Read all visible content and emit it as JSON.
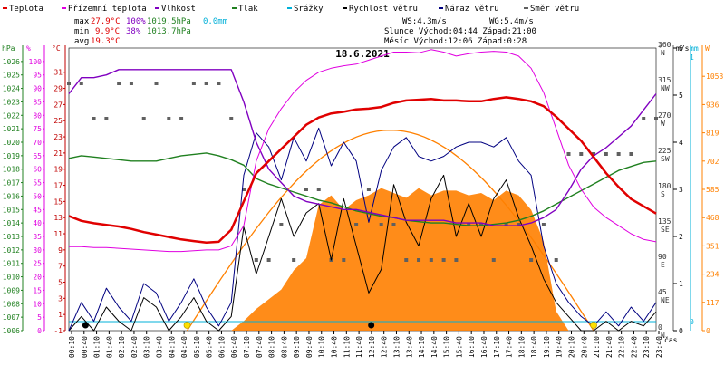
{
  "legend": [
    {
      "label": "Teplota",
      "color": "#e00000"
    },
    {
      "label": "Přízemní teplota",
      "color": "#e000e0"
    },
    {
      "label": "Vlhkost",
      "color": "#8000c0"
    },
    {
      "label": "Tlak",
      "color": "#208020"
    },
    {
      "label": "Srážky",
      "color": "#00b0d8"
    },
    {
      "label": "Rychlost větru",
      "color": "#000000"
    },
    {
      "label": "Náraz větru",
      "color": "#000080"
    },
    {
      "label": "Směr větru",
      "color": "#606060"
    }
  ],
  "stats": {
    "max_label": "max",
    "max_temp": "27.9°C",
    "max_hum": "100%",
    "max_press": "1019.5hPa",
    "max_rain": "0.0mm",
    "min_label": "min",
    "min_temp": "9.9°C",
    "min_hum": "38%",
    "min_press": "1013.7hPa",
    "avg_label": "avg",
    "avg_temp": "19.3°C",
    "ws": "WS:4.3m/s",
    "wg": "WG:5.4m/s",
    "sun": "Slunce Východ:04:44  Západ:21:00",
    "moon": "Měsíc  Východ:12:06  Západ:0:28"
  },
  "colors": {
    "temp": "#e00000",
    "ground": "#e000e0",
    "hum": "#8000c0",
    "press": "#208020",
    "rain": "#00b0d8",
    "wind": "#000000",
    "gust": "#000080",
    "dir": "#606060",
    "solar": "#ff8000",
    "sun": "#ff8000"
  },
  "chart_data": {
    "type": "line",
    "title": "18.6.2021",
    "xlabel": "čas",
    "x": [
      "00:00",
      "00:30",
      "01:00",
      "01:30",
      "02:00",
      "02:30",
      "03:00",
      "03:30",
      "04:00",
      "04:30",
      "05:00",
      "05:30",
      "06:00",
      "06:30",
      "07:00",
      "07:30",
      "08:00",
      "08:30",
      "09:00",
      "09:30",
      "10:00",
      "10:30",
      "11:00",
      "11:30",
      "12:00",
      "12:30",
      "13:00",
      "13:30",
      "14:00",
      "14:30",
      "15:00",
      "15:30",
      "16:00",
      "16:30",
      "17:00",
      "17:30",
      "18:00",
      "18:30",
      "19:00",
      "19:30",
      "20:00",
      "20:30",
      "21:00",
      "21:30",
      "22:00",
      "22:30",
      "23:00",
      "23:30"
    ],
    "x_tick_labels": [
      "00:10",
      "00:40",
      "01:10",
      "01:40",
      "02:10",
      "02:40",
      "03:10",
      "03:40",
      "04:10",
      "04:40",
      "05:10",
      "05:40",
      "06:10",
      "06:40",
      "07:10",
      "07:40",
      "08:10",
      "08:40",
      "09:10",
      "09:40",
      "10:10",
      "10:40",
      "11:10",
      "11:40",
      "12:10",
      "12:40",
      "13:10",
      "13:40",
      "14:10",
      "14:40",
      "15:10",
      "15:40",
      "16:10",
      "16:40",
      "17:10",
      "17:40",
      "18:10",
      "18:40",
      "19:10",
      "19:40",
      "20:10",
      "20:40",
      "21:10",
      "21:40",
      "22:10",
      "22:40",
      "23:10",
      "23:40"
    ],
    "axes": {
      "pressure": {
        "label": "hPa",
        "ylim": [
          1006,
          1027
        ],
        "ticks": [
          1006,
          1007,
          1008,
          1009,
          1010,
          1011,
          1012,
          1013,
          1014,
          1015,
          1016,
          1017,
          1018,
          1019,
          1020,
          1021,
          1022,
          1023,
          1024,
          1025,
          1026
        ]
      },
      "humidity": {
        "label": "%",
        "ylim": [
          0,
          105
        ],
        "ticks": [
          0,
          5,
          10,
          15,
          20,
          25,
          30,
          35,
          40,
          45,
          50,
          55,
          60,
          65,
          70,
          75,
          80,
          85,
          90,
          95,
          100
        ]
      },
      "temperature": {
        "label": "°C",
        "ylim": [
          -1,
          34
        ],
        "ticks": [
          -1,
          1,
          3,
          5,
          7,
          9,
          11,
          13,
          15,
          17,
          19,
          21,
          23,
          25,
          27,
          29,
          31
        ]
      },
      "direction": {
        "label": "°",
        "ticks": [
          {
            "v": 0,
            "l": "0"
          },
          {
            "v": 45,
            "l": "45"
          },
          {
            "v": 90,
            "l": "90"
          },
          {
            "v": 135,
            "l": "135"
          },
          {
            "v": 180,
            "l": "180"
          },
          {
            "v": 225,
            "l": "225"
          },
          {
            "v": 270,
            "l": "270"
          },
          {
            "v": 315,
            "l": "315"
          },
          {
            "v": 360,
            "l": "360"
          }
        ],
        "compass": [
          "N",
          "NE",
          "E",
          "SE",
          "S",
          "SW",
          "W",
          "NW",
          "N"
        ]
      },
      "wind": {
        "label": "m/s",
        "ticks": [
          0,
          1,
          2,
          3,
          4,
          5,
          6
        ]
      },
      "rain": {
        "label": "mm",
        "ticks": [
          0,
          1
        ]
      },
      "solar": {
        "label": "W",
        "ticks": [
          0,
          117,
          234,
          351,
          468,
          585,
          702,
          819,
          936,
          1053
        ]
      }
    },
    "series": [
      {
        "name": "Teplota",
        "axis": "temperature",
        "values": [
          13.2,
          12.6,
          12.3,
          12.1,
          11.9,
          11.6,
          11.2,
          10.9,
          10.6,
          10.3,
          10.1,
          9.9,
          10.0,
          11.5,
          15.0,
          18.5,
          20.0,
          21.5,
          23.0,
          24.5,
          25.4,
          25.9,
          26.1,
          26.4,
          26.5,
          26.7,
          27.2,
          27.5,
          27.6,
          27.7,
          27.5,
          27.5,
          27.4,
          27.4,
          27.7,
          27.9,
          27.7,
          27.4,
          26.8,
          25.5,
          24.0,
          22.5,
          20.5,
          18.5,
          16.8,
          15.3,
          14.4,
          13.5
        ]
      },
      {
        "name": "Přízemní teplota",
        "axis": "temperature",
        "values": [
          9.4,
          9.4,
          9.3,
          9.3,
          9.2,
          9.1,
          9.0,
          8.9,
          8.8,
          8.8,
          8.9,
          9.0,
          9.0,
          9.5,
          12.0,
          20.0,
          24.0,
          26.5,
          28.5,
          30.0,
          31.0,
          31.5,
          31.8,
          32.0,
          32.5,
          33.0,
          33.5,
          33.5,
          33.4,
          33.8,
          33.5,
          33.0,
          33.3,
          33.5,
          33.6,
          33.5,
          33.0,
          31.5,
          28.5,
          24.0,
          19.5,
          16.5,
          14.3,
          13.0,
          12.0,
          11.0,
          10.3,
          10.0
        ]
      },
      {
        "name": "Vlhkost",
        "axis": "humidity",
        "values": [
          88,
          94,
          94,
          95,
          97,
          97,
          97,
          97,
          97,
          97,
          97,
          97,
          97,
          97,
          85,
          70,
          60,
          55,
          50,
          48,
          47,
          46,
          45,
          45,
          44,
          43,
          42,
          41,
          41,
          41,
          41,
          40,
          40,
          40,
          39,
          39,
          39,
          40,
          42,
          45,
          52,
          60,
          65,
          68,
          72,
          76,
          82,
          88
        ]
      },
      {
        "name": "Tlak",
        "axis": "pressure",
        "values": [
          1018.8,
          1019.0,
          1018.9,
          1018.8,
          1018.7,
          1018.6,
          1018.6,
          1018.6,
          1018.8,
          1019.0,
          1019.1,
          1019.2,
          1019.0,
          1018.7,
          1018.3,
          1017.3,
          1016.9,
          1016.6,
          1016.3,
          1016.0,
          1015.7,
          1015.5,
          1015.2,
          1014.9,
          1014.7,
          1014.5,
          1014.4,
          1014.2,
          1014.1,
          1014.0,
          1014.0,
          1013.9,
          1013.8,
          1013.8,
          1013.9,
          1014.0,
          1014.2,
          1014.5,
          1014.9,
          1015.4,
          1015.9,
          1016.4,
          1016.9,
          1017.4,
          1017.9,
          1018.2,
          1018.5,
          1018.6
        ]
      },
      {
        "name": "Srážky",
        "axis": "rain",
        "values": [
          0,
          0,
          0,
          0,
          0,
          0,
          0,
          0,
          0,
          0,
          0,
          0,
          0,
          0,
          0,
          0,
          0,
          0,
          0,
          0,
          0,
          0,
          0,
          0,
          0,
          0,
          0,
          0,
          0,
          0,
          0,
          0,
          0,
          0,
          0,
          0,
          0,
          0,
          0,
          0,
          0,
          0,
          0,
          0,
          0,
          0,
          0,
          0
        ]
      },
      {
        "name": "Rychlost větru",
        "axis": "wind",
        "values": [
          0.0,
          0.3,
          0.0,
          0.5,
          0.2,
          0.0,
          0.7,
          0.5,
          0.0,
          0.3,
          0.7,
          0.2,
          0.0,
          0.3,
          2.2,
          1.2,
          2.0,
          2.8,
          2.0,
          2.5,
          2.7,
          1.5,
          2.8,
          1.8,
          0.8,
          1.3,
          3.1,
          2.3,
          1.8,
          2.8,
          3.3,
          2.0,
          2.7,
          2.0,
          2.8,
          3.2,
          2.4,
          1.8,
          1.1,
          0.6,
          0.3,
          0.0,
          0.0,
          0.2,
          0.0,
          0.2,
          0.1,
          0.4
        ]
      },
      {
        "name": "Náraz větru",
        "axis": "wind",
        "values": [
          0.0,
          0.6,
          0.2,
          0.9,
          0.5,
          0.2,
          1.0,
          0.8,
          0.2,
          0.6,
          1.1,
          0.5,
          0.1,
          0.6,
          3.3,
          4.2,
          3.9,
          3.2,
          4.1,
          3.6,
          4.3,
          3.5,
          4.0,
          3.6,
          2.3,
          3.4,
          3.9,
          4.1,
          3.7,
          3.6,
          3.7,
          3.9,
          4.0,
          4.0,
          3.9,
          4.1,
          3.6,
          3.3,
          1.8,
          1.0,
          0.6,
          0.3,
          0.1,
          0.4,
          0.1,
          0.5,
          0.2,
          0.6
        ]
      },
      {
        "name": "Směr větru",
        "axis": "direction",
        "values": [
          315,
          315,
          270,
          270,
          315,
          315,
          270,
          315,
          270,
          270,
          315,
          315,
          315,
          270,
          180,
          90,
          90,
          135,
          90,
          180,
          180,
          90,
          90,
          135,
          180,
          135,
          135,
          90,
          90,
          90,
          90,
          90,
          135,
          135,
          90,
          135,
          135,
          90,
          135,
          90,
          225,
          225,
          225,
          225,
          225,
          225,
          270,
          270
        ]
      },
      {
        "name": "Sluneční záření",
        "axis": "solar",
        "values": [
          0,
          0,
          0,
          0,
          0,
          0,
          0,
          0,
          0,
          0,
          0,
          0,
          0,
          0,
          40,
          90,
          130,
          170,
          250,
          300,
          520,
          560,
          500,
          540,
          560,
          590,
          570,
          550,
          590,
          560,
          580,
          580,
          560,
          570,
          540,
          580,
          560,
          500,
          370,
          80,
          0,
          0,
          0,
          0,
          0,
          0,
          0,
          0
        ]
      }
    ],
    "theoretical_sun": {
      "sunrise": "04:44",
      "sunset": "21:00",
      "peak_w": 830
    },
    "markers": [
      {
        "icon": "moon-icon",
        "time": "00:40"
      },
      {
        "icon": "sun-icon",
        "time": "04:44"
      },
      {
        "icon": "moon-icon",
        "time": "12:06"
      },
      {
        "icon": "sun-icon",
        "time": "21:00"
      }
    ]
  }
}
